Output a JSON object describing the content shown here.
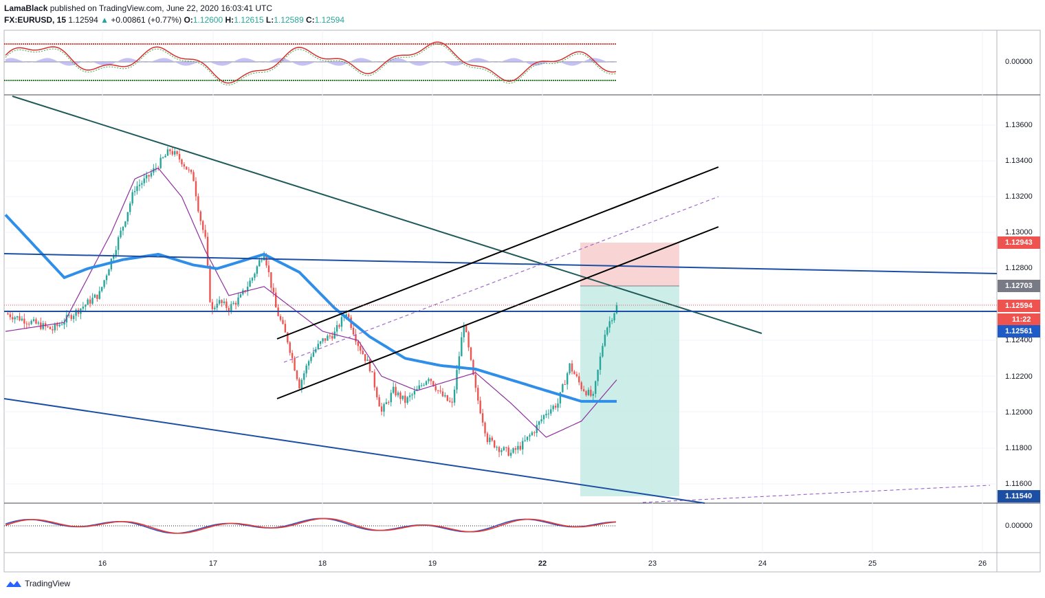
{
  "header": {
    "author": "LamaBlack",
    "published": "published on TradingView.com, June 22, 2020 16:03:41 UTC",
    "symbol": "FX:EURUSD, 15",
    "last": "1.12594",
    "change": "+0.00861 (+0.77%)",
    "o_label": "O:",
    "o_val": "1.12600",
    "h_label": "H:",
    "h_val": "1.12615",
    "l_label": "L:",
    "l_val": "1.12589",
    "c_label": "C:",
    "c_val": "1.12594"
  },
  "colors": {
    "ema_blue": "#2e8ee8",
    "sma_purple": "#8e2e9e",
    "trend_dark": "#1f5a5a",
    "channel_blue": "#1c4fa3",
    "stop_red": "#f8cfcf",
    "target_teal": "#c8ebe6",
    "tag_red": "#ef5350",
    "tag_gray": "#787b86",
    "tag_blue": "#1e5bc6"
  },
  "chart_data": {
    "type": "candlestick",
    "symbol": "FX:EURUSD",
    "timeframe": "15",
    "x_ticks": [
      "16",
      "17",
      "18",
      "19",
      "22",
      "23",
      "24",
      "25",
      "26"
    ],
    "y_ticks": [
      "1.13600",
      "1.13400",
      "1.13200",
      "1.13000",
      "1.12800",
      "1.12400",
      "1.12200",
      "1.12000",
      "1.11800",
      "1.11600"
    ],
    "ylim": [
      1.1152,
      1.1377
    ],
    "oscillator_top_tick": "0.00000",
    "oscillator_bottom_tick": "0.00000",
    "price_tags": [
      {
        "label": "1.12943",
        "price": 1.12943,
        "kind": "stop"
      },
      {
        "label": "1.12703",
        "price": 1.12703,
        "kind": "entry"
      },
      {
        "label": "1.12594",
        "price": 1.12594,
        "kind": "last"
      },
      {
        "label": "11:22",
        "price": 1.12533,
        "kind": "countdown"
      },
      {
        "label": "1.12561",
        "price": 1.12561,
        "kind": "level"
      },
      {
        "label": "1.11540",
        "price": 1.1154,
        "kind": "target"
      }
    ],
    "close_path": [
      [
        0,
        1.1255
      ],
      [
        4,
        1.1246
      ],
      [
        8,
        1.1266
      ],
      [
        10,
        1.1304
      ],
      [
        11,
        1.1325
      ],
      [
        12,
        1.133
      ],
      [
        13,
        1.1338
      ],
      [
        14,
        1.1346
      ],
      [
        15,
        1.134
      ],
      [
        16,
        1.133
      ],
      [
        16.5,
        1.131
      ],
      [
        17,
        1.1296
      ],
      [
        17.5,
        1.1255
      ],
      [
        18,
        1.1262
      ],
      [
        19,
        1.1258
      ],
      [
        20,
        1.1264
      ],
      [
        21,
        1.1275
      ],
      [
        22,
        1.129
      ],
      [
        23,
        1.1258
      ],
      [
        24,
        1.124
      ],
      [
        25,
        1.1215
      ],
      [
        26,
        1.1232
      ],
      [
        27,
        1.124
      ],
      [
        28,
        1.1244
      ],
      [
        29,
        1.1256
      ],
      [
        30,
        1.1238
      ],
      [
        31,
        1.1225
      ],
      [
        32,
        1.12
      ],
      [
        33,
        1.1212
      ],
      [
        34,
        1.1206
      ],
      [
        35,
        1.1212
      ],
      [
        36,
        1.122
      ],
      [
        37,
        1.121
      ],
      [
        38,
        1.1204
      ],
      [
        39,
        1.125
      ],
      [
        40,
        1.1212
      ],
      [
        41,
        1.1185
      ],
      [
        42,
        1.118
      ],
      [
        43,
        1.1177
      ],
      [
        44,
        1.1182
      ],
      [
        45,
        1.119
      ],
      [
        46,
        1.12
      ],
      [
        47,
        1.1205
      ],
      [
        48,
        1.1226
      ],
      [
        49,
        1.1214
      ],
      [
        50,
        1.1208
      ],
      [
        51,
        1.1245
      ],
      [
        52,
        1.1259
      ]
    ],
    "ema_path": [
      [
        0,
        1.131
      ],
      [
        5,
        1.1275
      ],
      [
        7,
        1.128
      ],
      [
        10,
        1.1285
      ],
      [
        13,
        1.1288
      ],
      [
        16,
        1.1282
      ],
      [
        18,
        1.128
      ],
      [
        22,
        1.1288
      ],
      [
        25,
        1.1278
      ],
      [
        28,
        1.1258
      ],
      [
        31,
        1.1242
      ],
      [
        34,
        1.123
      ],
      [
        37,
        1.1226
      ],
      [
        40,
        1.1224
      ],
      [
        43,
        1.1218
      ],
      [
        46,
        1.1212
      ],
      [
        49,
        1.1206
      ],
      [
        52,
        1.1206
      ]
    ],
    "sma_path": [
      [
        0,
        1.1245
      ],
      [
        5,
        1.125
      ],
      [
        9,
        1.13
      ],
      [
        11,
        1.133
      ],
      [
        13,
        1.1336
      ],
      [
        15,
        1.132
      ],
      [
        17,
        1.129
      ],
      [
        19,
        1.1265
      ],
      [
        22,
        1.127
      ],
      [
        24,
        1.126
      ],
      [
        27,
        1.1245
      ],
      [
        30,
        1.124
      ],
      [
        32,
        1.122
      ],
      [
        35,
        1.1212
      ],
      [
        38,
        1.1218
      ],
      [
        40,
        1.1222
      ],
      [
        43,
        1.1205
      ],
      [
        46,
        1.1186
      ],
      [
        49,
        1.1195
      ],
      [
        52,
        1.1218
      ]
    ]
  }
}
